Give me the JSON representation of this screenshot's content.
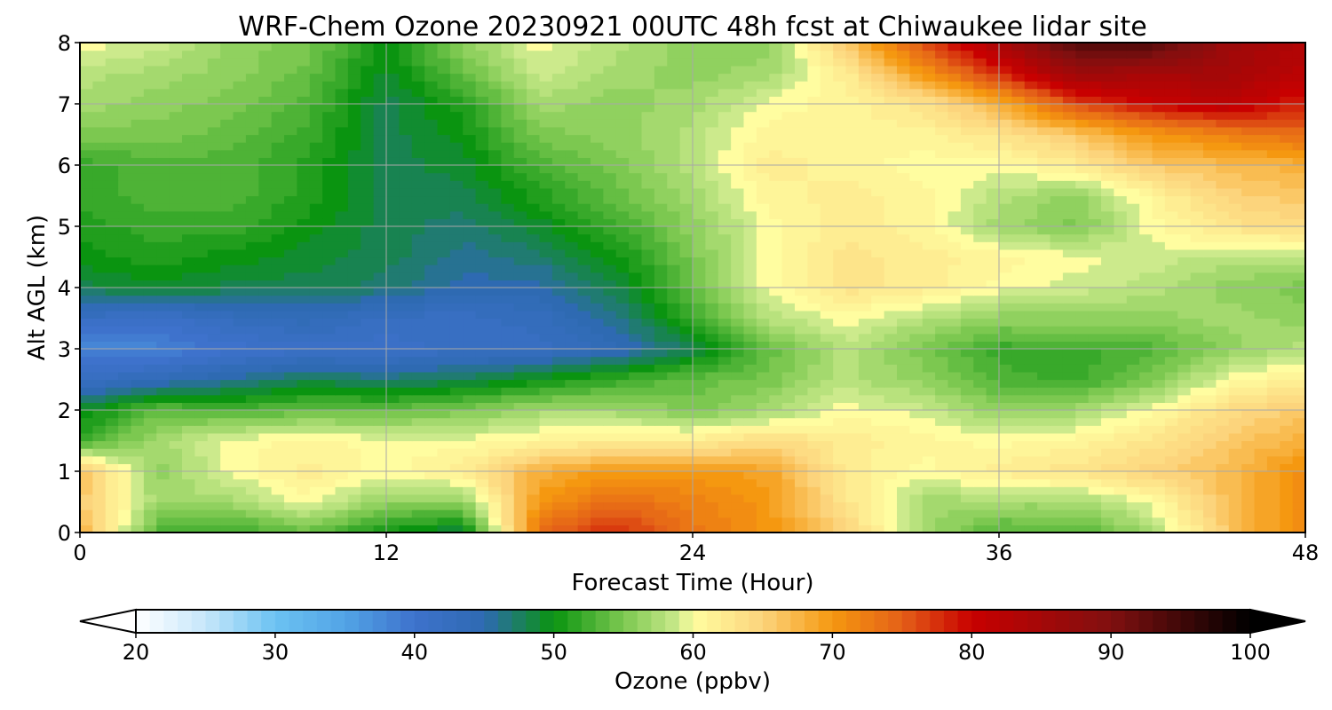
{
  "chart_data": {
    "type": "heatmap",
    "title": "WRF-Chem Ozone  20230921 00UTC 48h fcst at Chiwaukee lidar site",
    "xlabel": "Forecast Time (Hour)",
    "ylabel": "Alt AGL (km)",
    "xlim": [
      0,
      48
    ],
    "ylim": [
      0,
      8
    ],
    "x_ticks": [
      "0",
      "12",
      "24",
      "36",
      "48"
    ],
    "y_ticks": [
      "0",
      "1",
      "2",
      "3",
      "4",
      "5",
      "6",
      "7",
      "8"
    ],
    "grid": true,
    "x": [
      0,
      3,
      6,
      9,
      12,
      15,
      18,
      21,
      24,
      27,
      30,
      33,
      36,
      39,
      42,
      45,
      48
    ],
    "y": [
      0,
      0.5,
      1,
      1.5,
      2,
      2.5,
      3,
      3.5,
      4,
      4.5,
      5,
      5.5,
      6,
      6.5,
      7,
      7.5,
      8
    ],
    "z": [
      [
        68,
        53,
        52,
        54,
        50,
        48,
        74,
        78,
        73,
        70,
        65,
        57,
        53,
        53,
        57,
        66,
        72
      ],
      [
        66,
        57,
        57,
        60,
        56,
        56,
        70,
        74,
        72,
        70,
        63,
        57,
        57,
        57,
        60,
        67,
        71
      ],
      [
        67,
        56,
        60,
        62,
        60,
        62,
        68,
        70,
        70,
        69,
        62,
        60,
        62,
        63,
        65,
        67,
        71
      ],
      [
        52,
        57,
        60,
        61,
        60,
        60,
        61,
        62,
        62,
        64,
        62,
        61,
        60,
        61,
        63,
        66,
        68
      ],
      [
        49,
        54,
        53,
        54,
        54,
        55,
        57,
        57,
        55,
        57,
        60,
        59,
        56,
        57,
        60,
        64,
        66
      ],
      [
        42,
        44,
        46,
        48,
        47,
        48,
        50,
        52,
        54,
        55,
        58,
        56,
        53,
        52,
        55,
        60,
        62
      ],
      [
        38,
        38,
        40,
        41,
        41,
        42,
        42,
        44,
        48,
        54,
        58,
        55,
        52,
        52,
        53,
        56,
        58
      ],
      [
        42,
        41,
        43,
        44,
        42,
        42,
        43,
        46,
        52,
        58,
        60,
        58,
        56,
        56,
        56,
        57,
        56
      ],
      [
        48,
        49,
        48,
        48,
        47,
        45,
        45,
        48,
        54,
        60,
        63,
        62,
        60,
        59,
        58,
        56,
        55
      ],
      [
        50,
        51,
        50,
        49,
        48,
        46,
        47,
        50,
        55,
        60,
        63,
        62,
        61,
        60,
        59,
        58,
        58
      ],
      [
        51,
        52,
        52,
        50,
        48,
        47,
        49,
        52,
        56,
        60,
        62,
        61,
        57,
        55,
        60,
        63,
        64
      ],
      [
        52,
        53,
        53,
        51,
        48,
        48,
        51,
        54,
        57,
        61,
        62,
        61,
        58,
        56,
        61,
        65,
        66
      ],
      [
        52,
        53,
        53,
        51,
        48,
        49,
        53,
        55,
        58,
        62,
        61,
        60,
        60,
        62,
        66,
        67,
        68
      ],
      [
        55,
        55,
        54,
        52,
        48,
        50,
        55,
        56,
        58,
        61,
        61,
        61,
        63,
        66,
        70,
        72,
        74
      ],
      [
        57,
        56,
        55,
        53,
        48,
        51,
        57,
        56,
        57,
        60,
        61,
        63,
        68,
        76,
        80,
        82,
        78
      ],
      [
        58,
        57,
        56,
        54,
        49,
        54,
        59,
        57,
        56,
        57,
        62,
        70,
        78,
        86,
        85,
        85,
        82
      ],
      [
        60,
        59,
        56,
        55,
        50,
        56,
        60,
        58,
        56,
        56,
        66,
        76,
        84,
        94,
        94,
        86,
        83
      ]
    ],
    "colorbar": {
      "label": "Ozone  (ppbv)",
      "ticks": [
        "20",
        "30",
        "40",
        "50",
        "60",
        "70",
        "80",
        "90",
        "100"
      ],
      "min": 20,
      "max": 100,
      "extend": "both"
    },
    "colormap_stops": [
      [
        20,
        "#ffffff"
      ],
      [
        25,
        "#c6e7fa"
      ],
      [
        30,
        "#6cc2f2"
      ],
      [
        35,
        "#52a4e6"
      ],
      [
        40,
        "#3e72cc"
      ],
      [
        45,
        "#2e6ab2"
      ],
      [
        50,
        "#0a9410"
      ],
      [
        55,
        "#7cc850"
      ],
      [
        59,
        "#ccea8c"
      ],
      [
        60,
        "#fffda0"
      ],
      [
        65,
        "#fcd47c"
      ],
      [
        70,
        "#f59810"
      ],
      [
        75,
        "#e46018"
      ],
      [
        80,
        "#c80000"
      ],
      [
        90,
        "#801010"
      ],
      [
        100,
        "#000000"
      ]
    ]
  }
}
